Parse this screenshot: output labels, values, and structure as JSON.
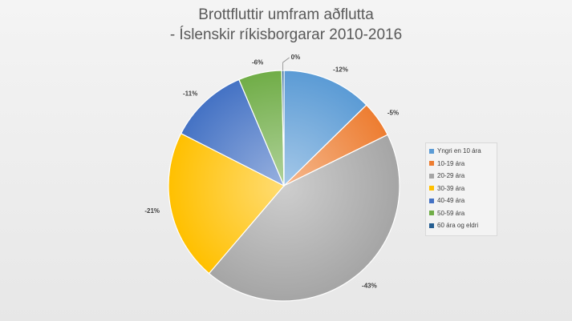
{
  "chart_data": {
    "type": "pie",
    "title": [
      "Brottfluttir umfram aðflutta",
      "- Íslenskir ríkisborgarar 2010-2016"
    ],
    "categories": [
      "Yngri en 10 ára",
      "10-19 ára",
      "20-29 ára",
      "30-39 ára",
      "40-49 ára",
      "50-59 ára",
      "60 ára og eldri"
    ],
    "values": [
      12.5,
      5,
      43,
      21,
      11,
      6,
      0.3
    ],
    "labels": [
      "-12%",
      "-5%",
      "-43%",
      "-21%",
      "-11%",
      "-6%",
      "0%"
    ],
    "colors": [
      "#5b9bd5",
      "#ed7d31",
      "#a5a5a5",
      "#ffc000",
      "#4472c4",
      "#70ad47",
      "#255e91"
    ],
    "legend_position": "right",
    "start": "top",
    "direction": "clockwise"
  }
}
